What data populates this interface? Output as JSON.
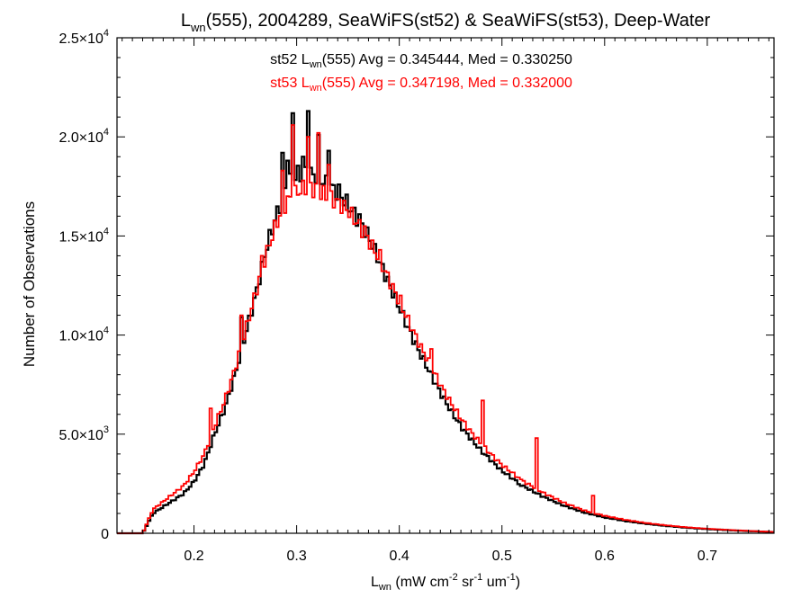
{
  "chart_data": {
    "type": "histogram-step",
    "title": {
      "main": "L",
      "main_sub": "wn",
      "rest": "(555), 2004289, SeaWiFS(st52) & SeaWiFS(st53), Deep-Water"
    },
    "xlabel": {
      "main": "L",
      "main_sub": "wn",
      "rest": " (mW cm",
      "sup1": "-2",
      "mid1": " sr",
      "sup2": "-1",
      "mid2": " um",
      "sup3": "-1",
      "end": ")"
    },
    "ylabel": "Number of Observations",
    "xlim": [
      0.125,
      0.765
    ],
    "ylim": [
      0,
      25000
    ],
    "x_ticks": [
      {
        "value": 0.2,
        "label": "0.2"
      },
      {
        "value": 0.3,
        "label": "0.3"
      },
      {
        "value": 0.4,
        "label": "0.4"
      },
      {
        "value": 0.5,
        "label": "0.5"
      },
      {
        "value": 0.6,
        "label": "0.6"
      },
      {
        "value": 0.7,
        "label": "0.7"
      }
    ],
    "y_ticks": [
      {
        "value": 0,
        "mant": "0",
        "exp": ""
      },
      {
        "value": 5000,
        "mant": "5.0×10",
        "exp": "3"
      },
      {
        "value": 10000,
        "mant": "1.0×10",
        "exp": "4"
      },
      {
        "value": 15000,
        "mant": "1.5×10",
        "exp": "4"
      },
      {
        "value": 20000,
        "mant": "2.0×10",
        "exp": "4"
      },
      {
        "value": 25000,
        "mant": "2.5×10",
        "exp": "4"
      }
    ],
    "annotations": [
      {
        "color": "#000000",
        "pre": "st52 L",
        "sub": "wn",
        "post": "(555) Avg = 0.345444, Med = 0.330250"
      },
      {
        "color": "#ff0000",
        "pre": "st53 L",
        "sub": "wn",
        "post": "(555) Avg = 0.347198, Med = 0.332000"
      }
    ],
    "bin_width": 0.0025,
    "series": [
      {
        "name": "st52",
        "color": "#000000",
        "points": [
          [
            0.125,
            0
          ],
          [
            0.15,
            0
          ],
          [
            0.16,
            1000
          ],
          [
            0.175,
            1500
          ],
          [
            0.19,
            2000
          ],
          [
            0.2,
            2600
          ],
          [
            0.21,
            3500
          ],
          [
            0.22,
            5000
          ],
          [
            0.23,
            6300
          ],
          [
            0.24,
            8000
          ],
          [
            0.25,
            10000
          ],
          [
            0.26,
            12000
          ],
          [
            0.27,
            14300
          ],
          [
            0.28,
            16000
          ],
          [
            0.29,
            17500
          ],
          [
            0.3,
            18100
          ],
          [
            0.31,
            18200
          ],
          [
            0.32,
            18000
          ],
          [
            0.33,
            17600
          ],
          [
            0.34,
            17200
          ],
          [
            0.35,
            16600
          ],
          [
            0.36,
            15800
          ],
          [
            0.37,
            15000
          ],
          [
            0.38,
            13800
          ],
          [
            0.39,
            12600
          ],
          [
            0.4,
            11400
          ],
          [
            0.41,
            10200
          ],
          [
            0.42,
            9100
          ],
          [
            0.43,
            8100
          ],
          [
            0.44,
            7100
          ],
          [
            0.45,
            6200
          ],
          [
            0.46,
            5400
          ],
          [
            0.47,
            4750
          ],
          [
            0.48,
            4150
          ],
          [
            0.49,
            3650
          ],
          [
            0.5,
            3150
          ],
          [
            0.52,
            2400
          ],
          [
            0.54,
            1850
          ],
          [
            0.56,
            1400
          ],
          [
            0.58,
            1050
          ],
          [
            0.6,
            800
          ],
          [
            0.62,
            620
          ],
          [
            0.64,
            480
          ],
          [
            0.66,
            370
          ],
          [
            0.68,
            280
          ],
          [
            0.7,
            210
          ],
          [
            0.72,
            160
          ],
          [
            0.74,
            110
          ],
          [
            0.765,
            60
          ]
        ],
        "spikes": [
          {
            "x": 0.2875,
            "y": 19200
          },
          {
            "x": 0.2975,
            "y": 21200
          },
          {
            "x": 0.3125,
            "y": 21300
          },
          {
            "x": 0.3225,
            "y": 20100
          },
          {
            "x": 0.3325,
            "y": 19300
          },
          {
            "x": 0.2925,
            "y": 18800
          },
          {
            "x": 0.3075,
            "y": 19000
          },
          {
            "x": 0.3425,
            "y": 17600
          },
          {
            "x": 0.3625,
            "y": 16100
          },
          {
            "x": 0.2675,
            "y": 13700
          },
          {
            "x": 0.2475,
            "y": 10900
          }
        ]
      },
      {
        "name": "st53",
        "color": "#ff0000",
        "points": [
          [
            0.125,
            0
          ],
          [
            0.15,
            0
          ],
          [
            0.16,
            1200
          ],
          [
            0.175,
            1800
          ],
          [
            0.19,
            2400
          ],
          [
            0.2,
            3100
          ],
          [
            0.21,
            4000
          ],
          [
            0.22,
            5400
          ],
          [
            0.23,
            6700
          ],
          [
            0.24,
            8300
          ],
          [
            0.25,
            10200
          ],
          [
            0.26,
            12100
          ],
          [
            0.27,
            14000
          ],
          [
            0.28,
            15600
          ],
          [
            0.29,
            16700
          ],
          [
            0.3,
            17200
          ],
          [
            0.31,
            17500
          ],
          [
            0.32,
            17300
          ],
          [
            0.33,
            17000
          ],
          [
            0.34,
            16700
          ],
          [
            0.35,
            16300
          ],
          [
            0.36,
            15600
          ],
          [
            0.37,
            14800
          ],
          [
            0.38,
            13900
          ],
          [
            0.39,
            12800
          ],
          [
            0.4,
            11700
          ],
          [
            0.41,
            10600
          ],
          [
            0.42,
            9500
          ],
          [
            0.43,
            8500
          ],
          [
            0.44,
            7500
          ],
          [
            0.45,
            6600
          ],
          [
            0.46,
            5800
          ],
          [
            0.47,
            5100
          ],
          [
            0.48,
            4500
          ],
          [
            0.49,
            3950
          ],
          [
            0.5,
            3450
          ],
          [
            0.52,
            2650
          ],
          [
            0.54,
            2050
          ],
          [
            0.56,
            1550
          ],
          [
            0.58,
            1150
          ],
          [
            0.6,
            880
          ],
          [
            0.62,
            680
          ],
          [
            0.64,
            520
          ],
          [
            0.66,
            400
          ],
          [
            0.68,
            300
          ],
          [
            0.7,
            230
          ],
          [
            0.72,
            170
          ],
          [
            0.74,
            120
          ],
          [
            0.765,
            65
          ]
        ],
        "spikes": [
          {
            "x": 0.2975,
            "y": 20600
          },
          {
            "x": 0.3225,
            "y": 20200
          },
          {
            "x": 0.3125,
            "y": 20000
          },
          {
            "x": 0.2875,
            "y": 18300
          },
          {
            "x": 0.3325,
            "y": 18600
          },
          {
            "x": 0.3675,
            "y": 15500
          },
          {
            "x": 0.3825,
            "y": 14300
          },
          {
            "x": 0.4025,
            "y": 12000
          },
          {
            "x": 0.4325,
            "y": 9300
          },
          {
            "x": 0.4825,
            "y": 6700
          },
          {
            "x": 0.5325,
            "y": 4800
          },
          {
            "x": 0.2675,
            "y": 14000
          },
          {
            "x": 0.2475,
            "y": 11000
          },
          {
            "x": 0.2175,
            "y": 6300
          },
          {
            "x": 0.5875,
            "y": 1900
          }
        ]
      }
    ]
  }
}
